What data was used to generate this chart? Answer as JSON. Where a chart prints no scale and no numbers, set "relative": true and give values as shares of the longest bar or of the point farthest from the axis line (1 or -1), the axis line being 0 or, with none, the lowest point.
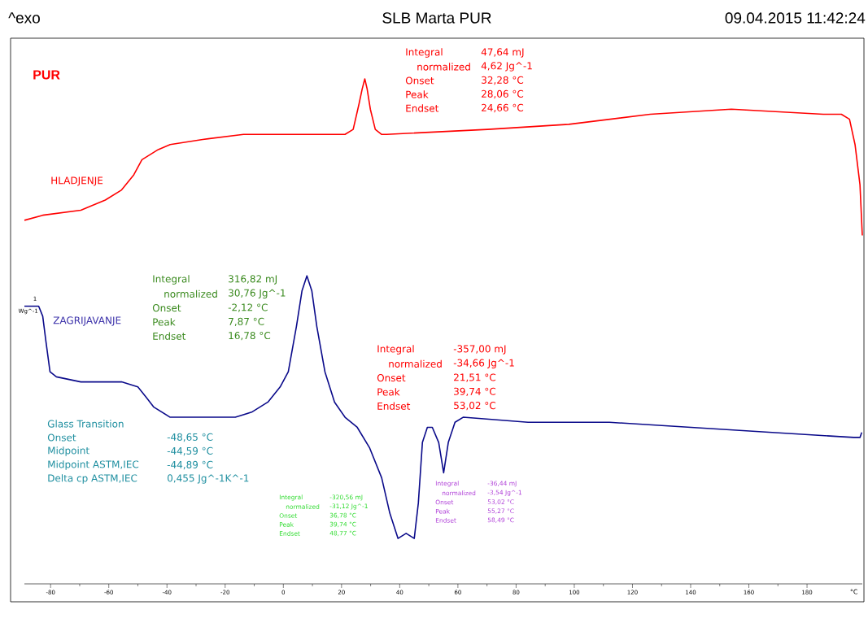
{
  "chart_data": {
    "type": "line",
    "title": "SLB Marta PUR",
    "xlabel": "°C",
    "relative": true,
    "xlim": [
      -89,
      199
    ],
    "xticks": [
      -80,
      -60,
      -40,
      -20,
      0,
      20,
      40,
      60,
      80,
      100,
      120,
      140,
      160,
      180
    ],
    "series": [
      {
        "name": "HLADJENJE",
        "color": "#ff0000",
        "x": [
          -89,
          -82.7,
          -69.6,
          -61.2,
          -55.6,
          -51.4,
          -48.6,
          -45.8,
          -43,
          -38.9,
          -27.7,
          -13.7,
          -8.1,
          3.1,
          14.3,
          17.6,
          21.2,
          24,
          26,
          27.1,
          28,
          28.8,
          29.9,
          31.6,
          33.8,
          35.5,
          70.2,
          98.1,
          126.1,
          154,
          185.6,
          191.8,
          194.6,
          196.5,
          198.2,
          199
        ],
        "values": [
          0.72,
          0.73,
          0.74,
          0.76,
          0.78,
          0.81,
          0.84,
          0.85,
          0.86,
          0.87,
          0.88,
          0.89,
          0.89,
          0.89,
          0.89,
          0.89,
          0.89,
          0.9,
          0.95,
          0.98,
          1,
          0.98,
          0.94,
          0.9,
          0.89,
          0.89,
          0.9,
          0.91,
          0.93,
          0.94,
          0.93,
          0.93,
          0.92,
          0.87,
          0.79,
          0.69
        ]
      },
      {
        "name": "ZAGRIJAVANJE",
        "color": "#0a0a8a",
        "x": [
          -89,
          -84.1,
          -82.7,
          -81.6,
          -80.2,
          -78,
          -69.6,
          -55.6,
          -50,
          -47.2,
          -44.5,
          -41.7,
          -38.9,
          -27.7,
          -16.5,
          -10.9,
          -5.3,
          -1.1,
          1.7,
          4.5,
          6.4,
          8.1,
          9.8,
          11.5,
          14.3,
          17.6,
          21.2,
          25.4,
          29.6,
          33.8,
          36.6,
          39.4,
          42.2,
          45,
          46.4,
          47.8,
          49.5,
          51.2,
          53.4,
          55.1,
          56.7,
          59,
          61.8,
          84.1,
          98.1,
          103.7,
          112.1,
          140.1,
          168,
          196,
          198.2,
          198.8
        ],
        "values": [
          0.55,
          0.55,
          0.53,
          0.48,
          0.42,
          0.41,
          0.4,
          0.4,
          0.39,
          0.37,
          0.35,
          0.34,
          0.33,
          0.33,
          0.33,
          0.34,
          0.36,
          0.39,
          0.42,
          0.51,
          0.58,
          0.61,
          0.58,
          0.51,
          0.42,
          0.36,
          0.33,
          0.31,
          0.27,
          0.21,
          0.14,
          0.09,
          0.1,
          0.09,
          0.16,
          0.28,
          0.31,
          0.31,
          0.28,
          0.22,
          0.28,
          0.32,
          0.33,
          0.32,
          0.32,
          0.32,
          0.32,
          0.31,
          0.3,
          0.29,
          0.29,
          0.3
        ]
      }
    ],
    "annotations": [
      "^exo",
      "09.04.2015 11:42:24",
      "PUR",
      "1",
      "Wg^-1",
      "Integral",
      "47,64 mJ",
      "normalized",
      "4,62 Jg^-1",
      "Onset",
      "32,28 °C",
      "Peak",
      "28,06 °C",
      "Endset",
      "24,66 °C",
      "Integral",
      "316,82 mJ",
      "normalized",
      "30,76 Jg^-1",
      "Onset",
      "-2,12 °C",
      "Peak",
      "7,87 °C",
      "Endset",
      "16,78 °C",
      "Integral",
      "-357,00 mJ",
      "normalized",
      "-34,66 Jg^-1",
      "Onset",
      "21,51 °C",
      "Peak",
      "39,74 °C",
      "Endset",
      "53,02 °C",
      "Glass Transition",
      "Onset",
      "-48,65 °C",
      "Midpoint",
      "-44,59 °C",
      "Midpoint ASTM,IEC",
      "-44,89 °C",
      "Delta cp ASTM,IEC",
      "0,455 Jg^-1K^-1",
      "Integral",
      "-320,56 mJ",
      "normalized",
      "-31,12 Jg^-1",
      "Onset",
      "36,78 °C",
      "Peak",
      "39,74 °C",
      "Endset",
      "48,77 °C",
      "Integral",
      "-36,44 mJ",
      "normalized",
      "-3,54 Jg^-1",
      "Onset",
      "53,02 °C",
      "Peak",
      "55,27 °C",
      "Endset",
      "58,49 °C"
    ]
  }
}
